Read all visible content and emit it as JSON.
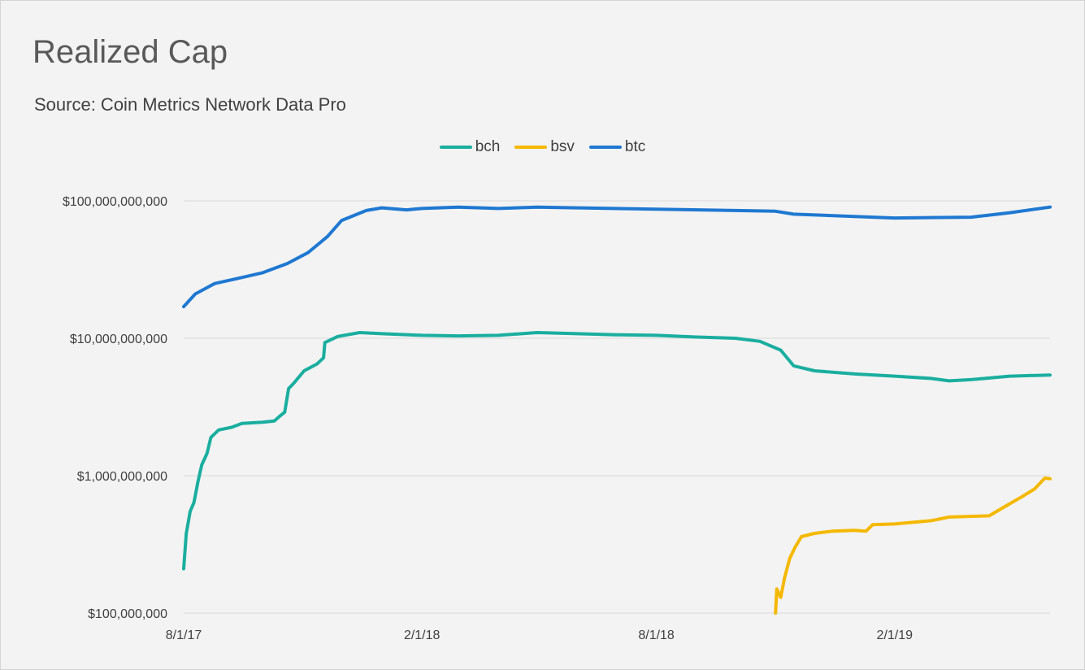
{
  "chart_data": {
    "type": "line",
    "title": "Realized Cap",
    "subtitle": "Source: Coin Metrics Network Data Pro",
    "yscale": "log",
    "ylim": [
      100000000,
      100000000000
    ],
    "xlim": [
      "2017-08-01",
      "2019-06-01"
    ],
    "y_ticks": [
      100000000,
      1000000000,
      10000000000,
      100000000000
    ],
    "y_tick_labels": [
      "$100,000,000",
      "$1,000,000,000",
      "$10,000,000,000",
      "$100,000,000,000"
    ],
    "x_ticks": [
      "2017-08-01",
      "2018-02-01",
      "2018-08-01",
      "2019-02-01"
    ],
    "x_tick_labels": [
      "8/1/17",
      "2/1/18",
      "8/1/18",
      "2/1/19"
    ],
    "grid": "horizontal",
    "legend_position": "top",
    "series": [
      {
        "name": "bch",
        "color": "#1aae9f",
        "points": [
          [
            "2017-08-01",
            210000000
          ],
          [
            "2017-08-03",
            380000000
          ],
          [
            "2017-08-06",
            550000000
          ],
          [
            "2017-08-09",
            640000000
          ],
          [
            "2017-08-12",
            900000000
          ],
          [
            "2017-08-15",
            1200000000
          ],
          [
            "2017-08-19",
            1450000000
          ],
          [
            "2017-08-22",
            1900000000
          ],
          [
            "2017-08-28",
            2150000000
          ],
          [
            "2017-09-07",
            2250000000
          ],
          [
            "2017-09-15",
            2400000000
          ],
          [
            "2017-10-01",
            2450000000
          ],
          [
            "2017-10-10",
            2500000000
          ],
          [
            "2017-10-14",
            2700000000
          ],
          [
            "2017-10-18",
            2900000000
          ],
          [
            "2017-10-21",
            4300000000
          ],
          [
            "2017-10-25",
            4700000000
          ],
          [
            "2017-11-02",
            5800000000
          ],
          [
            "2017-11-12",
            6500000000
          ],
          [
            "2017-11-17",
            7200000000
          ],
          [
            "2017-11-18",
            9300000000
          ],
          [
            "2017-11-28",
            10300000000
          ],
          [
            "2017-12-15",
            11000000000
          ],
          [
            "2018-01-01",
            10800000000
          ],
          [
            "2018-02-01",
            10500000000
          ],
          [
            "2018-03-01",
            10400000000
          ],
          [
            "2018-04-01",
            10500000000
          ],
          [
            "2018-05-01",
            11000000000
          ],
          [
            "2018-06-01",
            10800000000
          ],
          [
            "2018-07-01",
            10600000000
          ],
          [
            "2018-08-01",
            10500000000
          ],
          [
            "2018-09-01",
            10200000000
          ],
          [
            "2018-10-01",
            10000000000
          ],
          [
            "2018-10-20",
            9500000000
          ],
          [
            "2018-11-05",
            8200000000
          ],
          [
            "2018-11-15",
            6300000000
          ],
          [
            "2018-12-01",
            5800000000
          ],
          [
            "2019-01-01",
            5500000000
          ],
          [
            "2019-02-01",
            5300000000
          ],
          [
            "2019-03-01",
            5100000000
          ],
          [
            "2019-03-15",
            4900000000
          ],
          [
            "2019-04-01",
            5000000000
          ],
          [
            "2019-05-01",
            5300000000
          ],
          [
            "2019-06-01",
            5400000000
          ]
        ]
      },
      {
        "name": "bsv",
        "color": "#f5b800",
        "points": [
          [
            "2018-11-01",
            100000000
          ],
          [
            "2018-11-02",
            150000000
          ],
          [
            "2018-11-05",
            130000000
          ],
          [
            "2018-11-08",
            180000000
          ],
          [
            "2018-11-12",
            250000000
          ],
          [
            "2018-11-16",
            300000000
          ],
          [
            "2018-11-21",
            360000000
          ],
          [
            "2018-12-01",
            380000000
          ],
          [
            "2018-12-15",
            395000000
          ],
          [
            "2019-01-01",
            400000000
          ],
          [
            "2019-01-10",
            395000000
          ],
          [
            "2019-01-15",
            440000000
          ],
          [
            "2019-02-01",
            445000000
          ],
          [
            "2019-03-01",
            470000000
          ],
          [
            "2019-03-15",
            500000000
          ],
          [
            "2019-04-15",
            510000000
          ],
          [
            "2019-04-25",
            580000000
          ],
          [
            "2019-05-10",
            700000000
          ],
          [
            "2019-05-20",
            800000000
          ],
          [
            "2019-05-28",
            960000000
          ],
          [
            "2019-06-01",
            950000000
          ]
        ]
      },
      {
        "name": "btc",
        "color": "#1f78d1",
        "points": [
          [
            "2017-08-01",
            17000000000
          ],
          [
            "2017-08-10",
            21000000000
          ],
          [
            "2017-08-25",
            25000000000
          ],
          [
            "2017-09-10",
            27000000000
          ],
          [
            "2017-10-01",
            30000000000
          ],
          [
            "2017-10-20",
            35000000000
          ],
          [
            "2017-11-05",
            42000000000
          ],
          [
            "2017-11-20",
            55000000000
          ],
          [
            "2017-12-01",
            72000000000
          ],
          [
            "2017-12-20",
            85000000000
          ],
          [
            "2018-01-01",
            89000000000
          ],
          [
            "2018-01-20",
            86000000000
          ],
          [
            "2018-02-01",
            88000000000
          ],
          [
            "2018-03-01",
            90000000000
          ],
          [
            "2018-04-01",
            88000000000
          ],
          [
            "2018-05-01",
            90000000000
          ],
          [
            "2018-06-01",
            89000000000
          ],
          [
            "2018-08-01",
            87000000000
          ],
          [
            "2018-10-01",
            85000000000
          ],
          [
            "2018-11-01",
            84000000000
          ],
          [
            "2018-11-15",
            80000000000
          ],
          [
            "2019-01-01",
            77000000000
          ],
          [
            "2019-02-01",
            75000000000
          ],
          [
            "2019-04-01",
            76000000000
          ],
          [
            "2019-05-01",
            82000000000
          ],
          [
            "2019-06-01",
            90000000000
          ]
        ]
      }
    ]
  }
}
